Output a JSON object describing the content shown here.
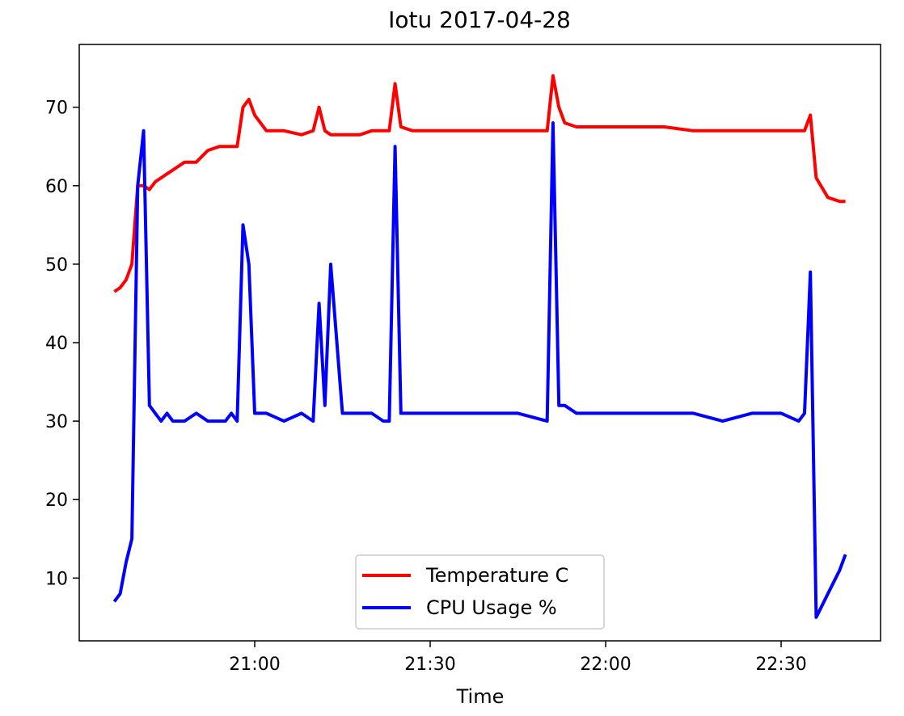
{
  "chart_data": {
    "type": "line",
    "title": "Iotu 2017-04-28",
    "xlabel": "Time",
    "ylabel": "",
    "xlim": [
      "20:30",
      "22:47"
    ],
    "ylim": [
      2,
      78
    ],
    "x_ticks": [
      "21:00",
      "21:30",
      "22:00",
      "22:30"
    ],
    "y_ticks": [
      10,
      20,
      30,
      40,
      50,
      60,
      70
    ],
    "grid": false,
    "legend_position": "lower-center",
    "x": [
      "20:36",
      "20:37",
      "20:38",
      "20:39",
      "20:40",
      "20:41",
      "20:42",
      "20:43",
      "20:44",
      "20:45",
      "20:46",
      "20:48",
      "20:50",
      "20:52",
      "20:54",
      "20:55",
      "20:56",
      "20:57",
      "20:58",
      "20:59",
      "21:00",
      "21:02",
      "21:05",
      "21:08",
      "21:10",
      "21:11",
      "21:12",
      "21:13",
      "21:15",
      "21:18",
      "21:20",
      "21:22",
      "21:23",
      "21:24",
      "21:25",
      "21:27",
      "21:30",
      "21:35",
      "21:40",
      "21:45",
      "21:50",
      "21:51",
      "21:52",
      "21:53",
      "21:55",
      "22:00",
      "22:05",
      "22:10",
      "22:15",
      "22:20",
      "22:25",
      "22:30",
      "22:33",
      "22:34",
      "22:35",
      "22:36",
      "22:38",
      "22:40",
      "22:41"
    ],
    "series": [
      {
        "name": "Temperature C",
        "color": "#ff0000",
        "values": [
          46.5,
          47,
          48,
          50,
          60,
          60,
          59.5,
          60.5,
          61,
          61.5,
          62,
          63,
          63,
          64.5,
          65,
          65,
          65,
          65,
          70,
          71,
          69,
          67,
          67,
          66.5,
          67,
          70,
          67,
          66.5,
          66.5,
          66.5,
          67,
          67,
          67,
          73,
          67.5,
          67,
          67,
          67,
          67,
          67,
          67,
          74,
          70,
          68,
          67.5,
          67.5,
          67.5,
          67.5,
          67,
          67,
          67,
          67,
          67,
          67,
          69,
          61,
          58.5,
          58,
          58
        ]
      },
      {
        "name": "CPU Usage %",
        "color": "#0000ff",
        "values": [
          7,
          8,
          12,
          15,
          60,
          67,
          32,
          31,
          30,
          31,
          30,
          30,
          31,
          30,
          30,
          30,
          31,
          30,
          55,
          50,
          31,
          31,
          30,
          31,
          30,
          45,
          32,
          50,
          31,
          31,
          31,
          30,
          30,
          65,
          31,
          31,
          31,
          31,
          31,
          31,
          30,
          68,
          32,
          32,
          31,
          31,
          31,
          31,
          31,
          30,
          31,
          31,
          30,
          31,
          49,
          5,
          8,
          11,
          13
        ]
      }
    ]
  }
}
